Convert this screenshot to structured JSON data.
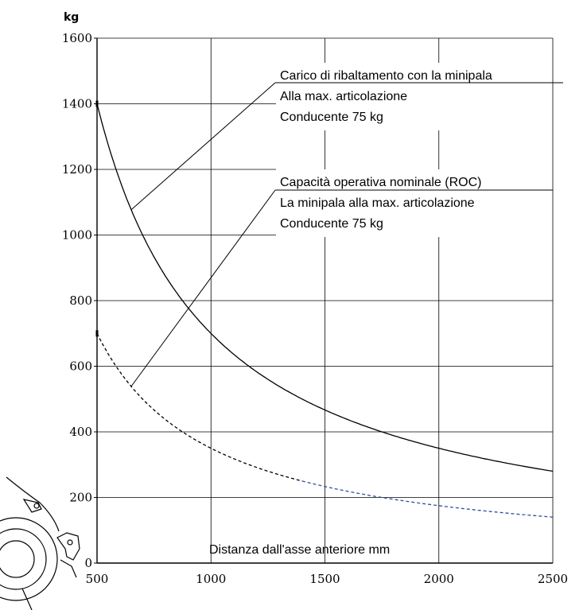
{
  "chart_data": {
    "type": "line",
    "ylabel": "kg",
    "xlabel": "Distanza dall'asse anteriore mm",
    "xlim": [
      500,
      2500
    ],
    "ylim": [
      0,
      1600
    ],
    "x_ticks": [
      500,
      1000,
      1500,
      2000,
      2500
    ],
    "y_ticks": [
      0,
      200,
      400,
      600,
      800,
      1000,
      1200,
      1400,
      1600
    ],
    "grid": true,
    "series": [
      {
        "name": "Carico di ribaltamento con la minipala",
        "style": "solid",
        "color": "#000000",
        "x": [
          500,
          600,
          700,
          800,
          900,
          1000,
          1200,
          1500,
          1750,
          2000,
          2250,
          2500
        ],
        "y": [
          1400,
          1167,
          1000,
          875,
          778,
          700,
          583,
          467,
          400,
          350,
          311,
          280
        ]
      },
      {
        "name": "Capacità operativa nominale (ROC)",
        "style": "dashed",
        "color": "#000000",
        "color_tail": "#2e4f9e",
        "tail_from_x": 1400,
        "x": [
          500,
          600,
          700,
          800,
          900,
          1000,
          1200,
          1500,
          1750,
          2000,
          2250,
          2500
        ],
        "y": [
          700,
          583,
          500,
          438,
          389,
          350,
          292,
          233,
          200,
          175,
          156,
          140
        ]
      }
    ],
    "annotations": [
      {
        "lines": [
          "Carico di ribaltamento con la minipala",
          "Alla max. articolazione",
          "Conducente 75 kg"
        ],
        "pointer_x": 650
      },
      {
        "lines": [
          "Capacità operativa nominale (ROC)",
          "La minipala alla max. articolazione",
          "Conducente 75 kg"
        ],
        "pointer_x": 650
      }
    ]
  },
  "decoration": {
    "wheel_icon": "wheel-loader-front-wheel-icon"
  }
}
